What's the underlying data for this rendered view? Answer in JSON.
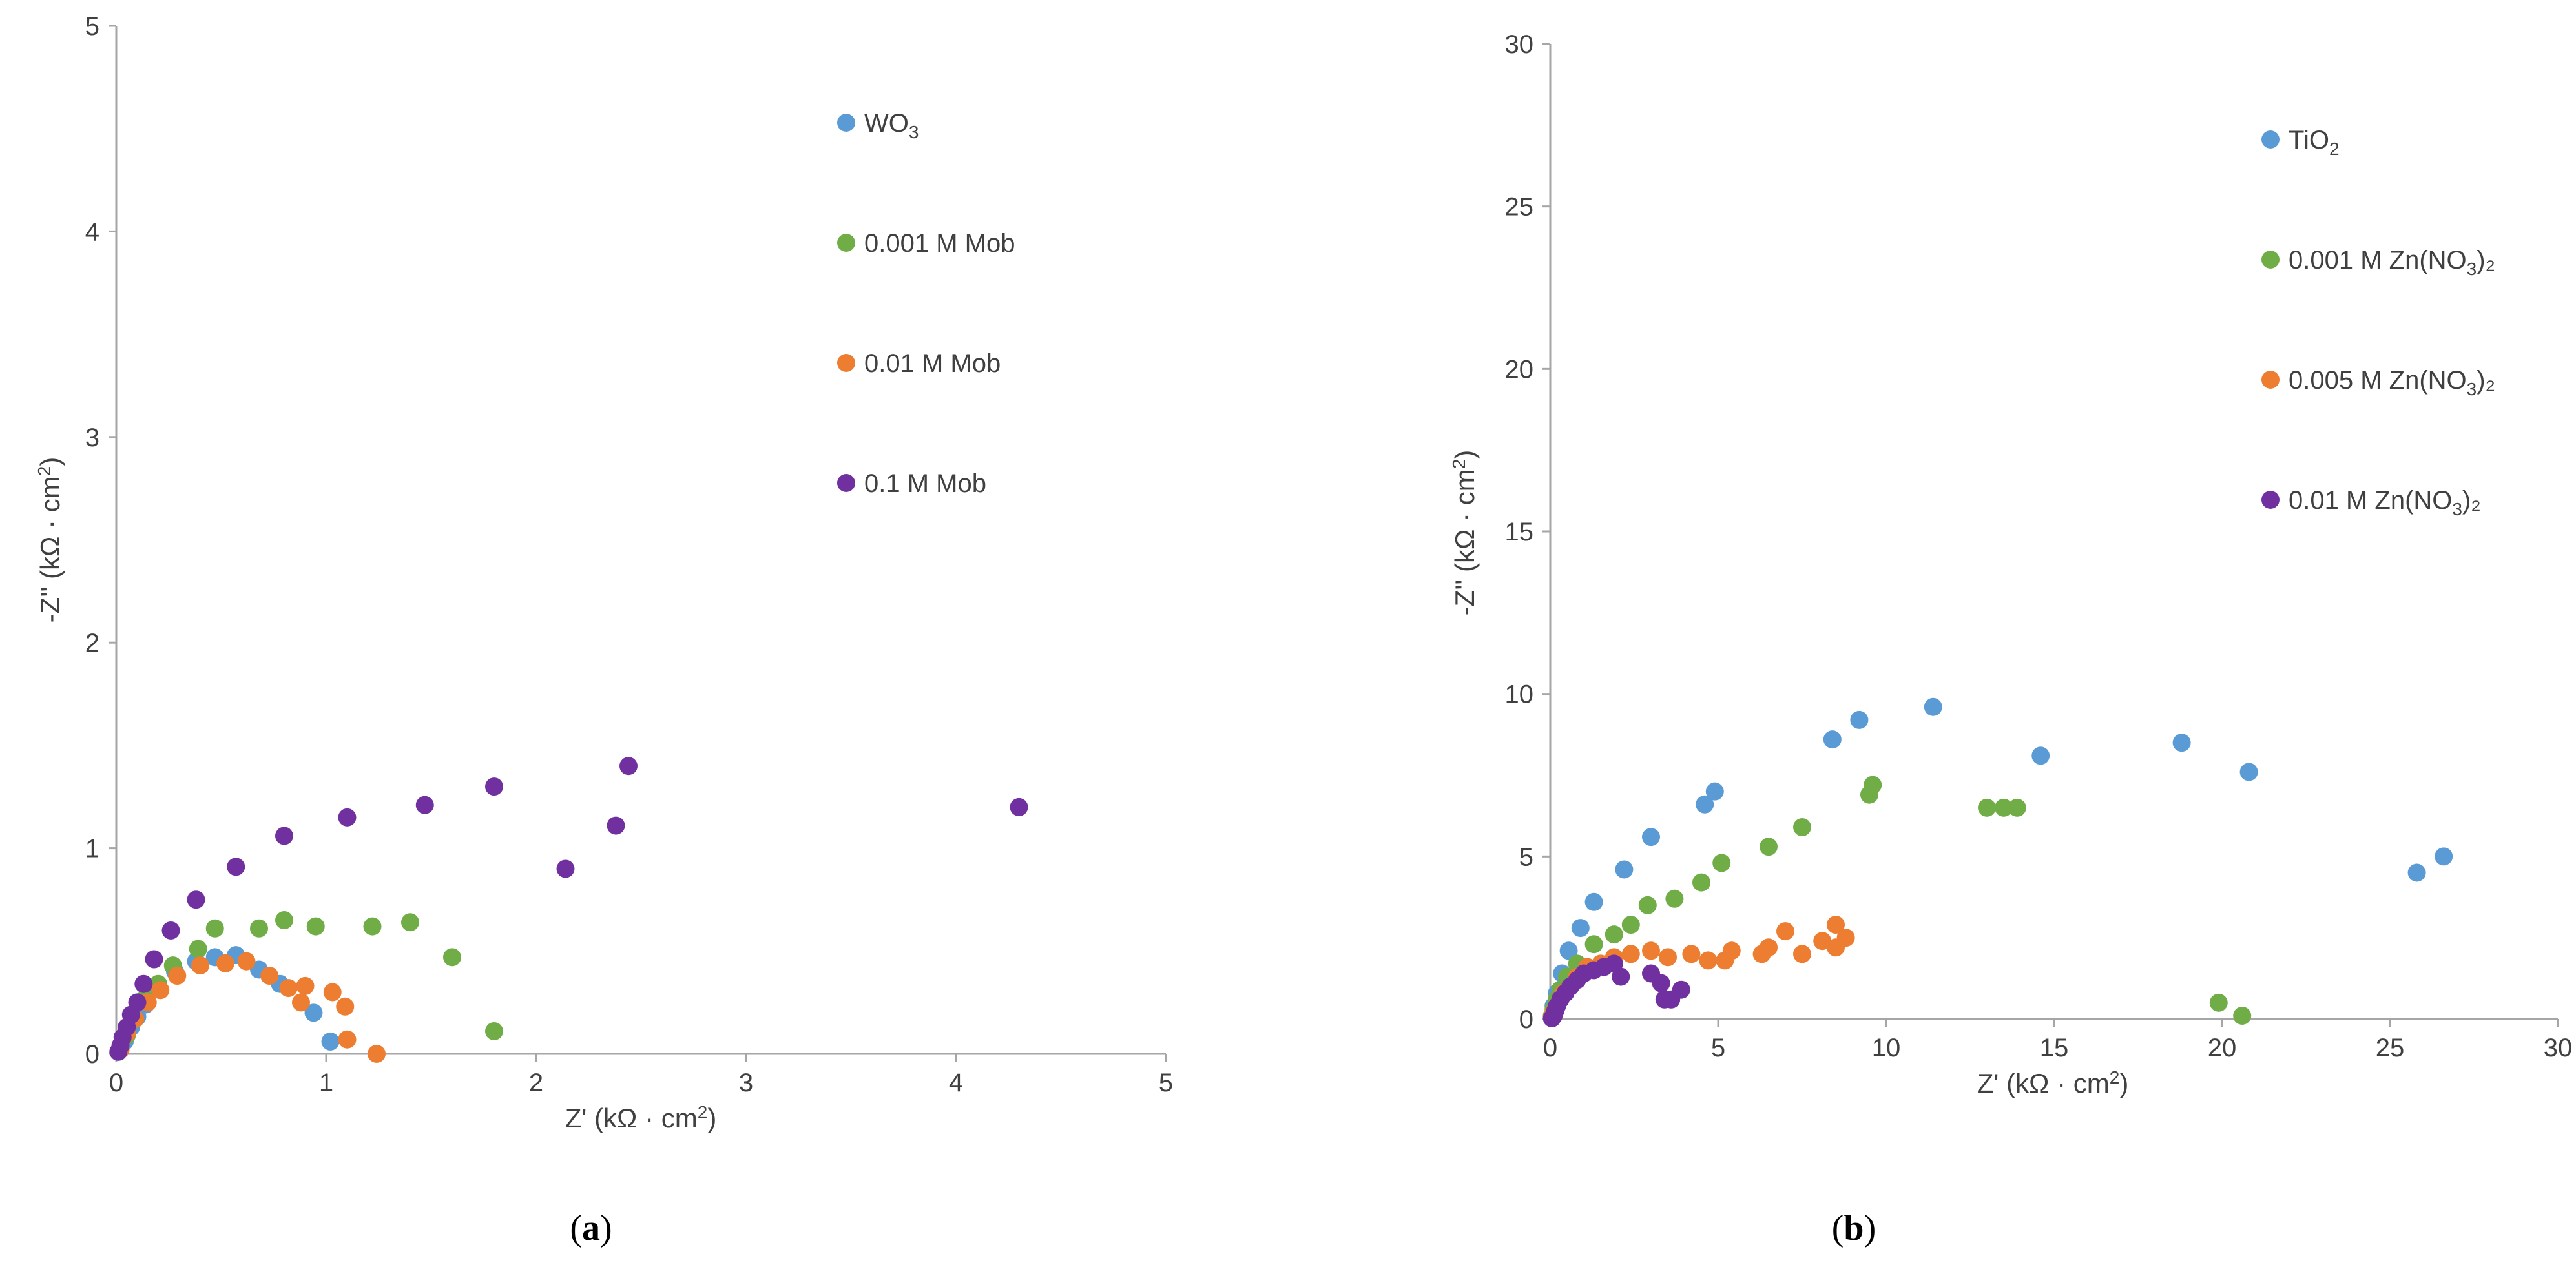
{
  "chart_data": [
    {
      "type": "scatter",
      "panel_label": "a",
      "title": "",
      "xlabel": {
        "main": "Z' (kΩ · cm",
        "sup": "2",
        "close": ")"
      },
      "ylabel": {
        "main": "-Z'' (kΩ · cm",
        "sup": "2",
        "close": ")"
      },
      "xlim": [
        0,
        5
      ],
      "ylim": [
        0,
        5
      ],
      "xticks": [
        "0",
        "1",
        "2",
        "3",
        "4",
        "5"
      ],
      "yticks": [
        "0",
        "1",
        "2",
        "3",
        "4",
        "5"
      ],
      "grid": false,
      "legend_position": "top-right",
      "series": [
        {
          "name": "WO3",
          "legend": {
            "main": "WO",
            "sub": "3",
            "tail": ""
          },
          "color": "#5B9BD5",
          "points": [
            [
              0.02,
              0.02
            ],
            [
              0.04,
              0.06
            ],
            [
              0.07,
              0.13
            ],
            [
              0.1,
              0.18
            ],
            [
              0.14,
              0.24
            ],
            [
              0.2,
              0.32
            ],
            [
              0.28,
              0.4
            ],
            [
              0.38,
              0.45
            ],
            [
              0.47,
              0.47
            ],
            [
              0.57,
              0.48
            ],
            [
              0.68,
              0.41
            ],
            [
              0.78,
              0.34
            ],
            [
              0.94,
              0.2
            ],
            [
              1.02,
              0.06
            ]
          ]
        },
        {
          "name": "0.001 M Mob",
          "legend": {
            "main": "0.001 M Mob",
            "sub": "",
            "tail": ""
          },
          "color": "#70AD47",
          "points": [
            [
              0.02,
              0.03
            ],
            [
              0.05,
              0.09
            ],
            [
              0.09,
              0.17
            ],
            [
              0.14,
              0.27
            ],
            [
              0.2,
              0.34
            ],
            [
              0.27,
              0.43
            ],
            [
              0.39,
              0.51
            ],
            [
              0.47,
              0.61
            ],
            [
              0.68,
              0.61
            ],
            [
              0.8,
              0.65
            ],
            [
              0.95,
              0.62
            ],
            [
              1.22,
              0.62
            ],
            [
              1.4,
              0.64
            ],
            [
              1.6,
              0.47
            ],
            [
              1.8,
              0.11
            ]
          ]
        },
        {
          "name": "0.01 M Mob",
          "legend": {
            "main": "0.01 M Mob",
            "sub": "",
            "tail": ""
          },
          "color": "#ED7D31",
          "points": [
            [
              0.02,
              0.02
            ],
            [
              0.05,
              0.1
            ],
            [
              0.09,
              0.17
            ],
            [
              0.15,
              0.25
            ],
            [
              0.21,
              0.31
            ],
            [
              0.29,
              0.38
            ],
            [
              0.4,
              0.43
            ],
            [
              0.52,
              0.44
            ],
            [
              0.62,
              0.45
            ],
            [
              0.73,
              0.38
            ],
            [
              0.82,
              0.32
            ],
            [
              0.88,
              0.25
            ],
            [
              0.9,
              0.33
            ],
            [
              1.03,
              0.3
            ],
            [
              1.09,
              0.23
            ],
            [
              1.1,
              0.07
            ],
            [
              1.24,
              0.0
            ]
          ]
        },
        {
          "name": "0.1 M Mob",
          "legend": {
            "main": "0.1 M Mob",
            "sub": "",
            "tail": ""
          },
          "color": "#7030A0",
          "points": [
            [
              0.01,
              0.01
            ],
            [
              0.02,
              0.04
            ],
            [
              0.03,
              0.08
            ],
            [
              0.05,
              0.13
            ],
            [
              0.07,
              0.19
            ],
            [
              0.1,
              0.25
            ],
            [
              0.13,
              0.34
            ],
            [
              0.18,
              0.46
            ],
            [
              0.26,
              0.6
            ],
            [
              0.38,
              0.75
            ],
            [
              0.57,
              0.91
            ],
            [
              0.8,
              1.06
            ],
            [
              1.1,
              1.15
            ],
            [
              1.47,
              1.21
            ],
            [
              1.8,
              1.3
            ],
            [
              2.14,
              0.9
            ],
            [
              2.38,
              1.11
            ],
            [
              2.44,
              1.4
            ],
            [
              4.3,
              1.2
            ]
          ]
        }
      ]
    },
    {
      "type": "scatter",
      "panel_label": "b",
      "title": "",
      "xlabel": {
        "main": "Z' (kΩ · cm",
        "sup": "2",
        "close": ")"
      },
      "ylabel": {
        "main": "-Z'' (kΩ · cm",
        "sup": "2",
        "close": ")"
      },
      "xlim": [
        0,
        30
      ],
      "ylim": [
        0,
        30
      ],
      "xticks": [
        "0",
        "5",
        "10",
        "15",
        "20",
        "25",
        "30"
      ],
      "yticks": [
        "0",
        "5",
        "10",
        "15",
        "20",
        "25",
        "30"
      ],
      "grid": false,
      "legend_position": "top-right",
      "series": [
        {
          "name": "TiO2",
          "legend": {
            "main": "TiO",
            "sub": "2",
            "tail": ""
          },
          "color": "#5B9BD5",
          "points": [
            [
              0.05,
              0.1
            ],
            [
              0.1,
              0.4
            ],
            [
              0.2,
              0.8
            ],
            [
              0.35,
              1.4
            ],
            [
              0.55,
              2.1
            ],
            [
              0.9,
              2.8
            ],
            [
              1.3,
              3.6
            ],
            [
              2.2,
              4.6
            ],
            [
              3.0,
              5.6
            ],
            [
              4.6,
              6.6
            ],
            [
              4.9,
              7.0
            ],
            [
              8.4,
              8.6
            ],
            [
              9.2,
              9.2
            ],
            [
              11.4,
              9.6
            ],
            [
              14.6,
              8.1
            ],
            [
              18.8,
              8.5
            ],
            [
              20.8,
              7.6
            ],
            [
              25.8,
              4.5
            ],
            [
              26.6,
              5.0
            ]
          ]
        },
        {
          "name": "0.001 M Zn(NO3)2",
          "legend": {
            "main": "0.001 M Zn(NO",
            "sub": "3",
            "tail": ")₂"
          },
          "color": "#70AD47",
          "points": [
            [
              0.05,
              0.1
            ],
            [
              0.1,
              0.3
            ],
            [
              0.2,
              0.6
            ],
            [
              0.3,
              0.9
            ],
            [
              0.5,
              1.3
            ],
            [
              0.8,
              1.7
            ],
            [
              1.3,
              2.3
            ],
            [
              1.9,
              2.6
            ],
            [
              2.4,
              2.9
            ],
            [
              2.9,
              3.5
            ],
            [
              3.7,
              3.7
            ],
            [
              4.5,
              4.2
            ],
            [
              5.1,
              4.8
            ],
            [
              6.5,
              5.3
            ],
            [
              7.5,
              5.9
            ],
            [
              9.5,
              6.9
            ],
            [
              9.6,
              7.2
            ],
            [
              13.0,
              6.5
            ],
            [
              13.5,
              6.5
            ],
            [
              13.9,
              6.5
            ],
            [
              19.9,
              0.5
            ],
            [
              20.6,
              0.1
            ]
          ]
        },
        {
          "name": "0.005 M Zn(NO3)2",
          "legend": {
            "main": "0.005 M Zn(NO",
            "sub": "3",
            "tail": ")₂"
          },
          "color": "#ED7D31",
          "points": [
            [
              0.05,
              0.05
            ],
            [
              0.1,
              0.2
            ],
            [
              0.2,
              0.4
            ],
            [
              0.3,
              0.6
            ],
            [
              0.4,
              0.8
            ],
            [
              0.6,
              1.0
            ],
            [
              0.8,
              1.3
            ],
            [
              1.1,
              1.6
            ],
            [
              1.5,
              1.7
            ],
            [
              1.9,
              1.9
            ],
            [
              2.4,
              2.0
            ],
            [
              3.0,
              2.1
            ],
            [
              3.5,
              1.9
            ],
            [
              4.2,
              2.0
            ],
            [
              4.7,
              1.8
            ],
            [
              5.2,
              1.8
            ],
            [
              5.4,
              2.1
            ],
            [
              6.3,
              2.0
            ],
            [
              6.5,
              2.2
            ],
            [
              7.0,
              2.7
            ],
            [
              7.5,
              2.0
            ],
            [
              8.1,
              2.4
            ],
            [
              8.5,
              2.2
            ],
            [
              8.5,
              2.9
            ],
            [
              8.8,
              2.5
            ]
          ]
        },
        {
          "name": "0.01 M Zn(NO3)2",
          "legend": {
            "main": "0.01 M Zn(NO",
            "sub": "3",
            "tail": ")₂"
          },
          "color": "#7030A0",
          "points": [
            [
              0.05,
              0.02
            ],
            [
              0.1,
              0.1
            ],
            [
              0.15,
              0.25
            ],
            [
              0.2,
              0.4
            ],
            [
              0.3,
              0.6
            ],
            [
              0.45,
              0.8
            ],
            [
              0.6,
              1.0
            ],
            [
              0.8,
              1.2
            ],
            [
              1.0,
              1.4
            ],
            [
              1.3,
              1.5
            ],
            [
              1.6,
              1.6
            ],
            [
              1.9,
              1.7
            ],
            [
              2.1,
              1.3
            ],
            [
              3.0,
              1.4
            ],
            [
              3.3,
              1.1
            ],
            [
              3.4,
              0.6
            ],
            [
              3.6,
              0.6
            ],
            [
              3.9,
              0.9
            ]
          ]
        }
      ]
    }
  ]
}
